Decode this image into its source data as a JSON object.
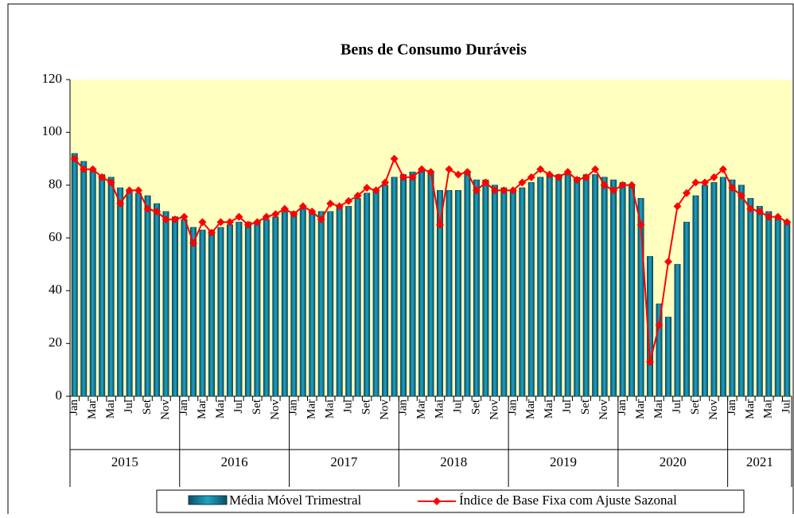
{
  "chart_data": {
    "type": "combo",
    "title": "Bens de Consumo Duráveis",
    "categories": [
      "Jan",
      null,
      "Mar",
      null,
      "Mai",
      null,
      "Jul",
      null,
      "Set",
      null,
      "Nov",
      null,
      "Jan",
      null,
      "Mar",
      null,
      "Mai",
      null,
      "Jul",
      null,
      "Set",
      null,
      "Nov",
      null,
      "Jan",
      null,
      "Mar",
      null,
      "Mai",
      null,
      "Jul",
      null,
      "Set",
      null,
      "Nov",
      null,
      "Jan",
      null,
      "Mar",
      null,
      "Mai",
      null,
      "Jul",
      null,
      "Set",
      null,
      "Nov",
      null,
      "Jan",
      null,
      "Mar",
      null,
      "Mai",
      null,
      "Jul",
      null,
      "Set",
      null,
      "Nov",
      null,
      "Jan",
      null,
      "Mar",
      null,
      "Mai",
      null,
      "Jul",
      null,
      "Set",
      null,
      "Nov",
      null,
      "Jan",
      null,
      "Mar",
      null,
      "Mai",
      null,
      "Jul"
    ],
    "years": [
      "2015",
      "2016",
      "2017",
      "2018",
      "2019",
      "2020",
      "2021"
    ],
    "series": [
      {
        "name": "Média Móvel Trimestral",
        "kind": "bar",
        "color": "#1fa3c4",
        "values": [
          92,
          89,
          86,
          84,
          83,
          79,
          78,
          77,
          76,
          73,
          70,
          68,
          67,
          64,
          63,
          63,
          64,
          65,
          66,
          66,
          66,
          67,
          68,
          70,
          70,
          71,
          70,
          70,
          70,
          72,
          72,
          75,
          77,
          78,
          80,
          83,
          84,
          85,
          86,
          85,
          78,
          78,
          78,
          85,
          82,
          82,
          80,
          79,
          78,
          79,
          81,
          83,
          84,
          84,
          84,
          83,
          84,
          84,
          83,
          82,
          81,
          80,
          75,
          53,
          35,
          30,
          50,
          66,
          76,
          80,
          81,
          83,
          82,
          80,
          75,
          72,
          70,
          68,
          66
        ]
      },
      {
        "name": "Índice de Base Fixa com Ajuste Sazonal",
        "kind": "line",
        "color": "#ff0000",
        "values": [
          90,
          86,
          86,
          83,
          81,
          73,
          78,
          78,
          71,
          70,
          67,
          67,
          68,
          58,
          66,
          62,
          66,
          66,
          68,
          65,
          66,
          68,
          69,
          71,
          69,
          72,
          70,
          67,
          73,
          72,
          74,
          76,
          79,
          78,
          81,
          90,
          83,
          83,
          86,
          85,
          65,
          86,
          84,
          85,
          78,
          81,
          78,
          78,
          78,
          81,
          83,
          86,
          84,
          83,
          85,
          82,
          83,
          86,
          80,
          78,
          80,
          80,
          65,
          13,
          27,
          51,
          72,
          77,
          81,
          81,
          83,
          86,
          79,
          76,
          71,
          70,
          68,
          68,
          66
        ]
      }
    ],
    "ylim": [
      0,
      120
    ],
    "yticks": [
      0,
      20,
      40,
      60,
      80,
      100,
      120
    ],
    "plot_background": "#ffffc0"
  }
}
